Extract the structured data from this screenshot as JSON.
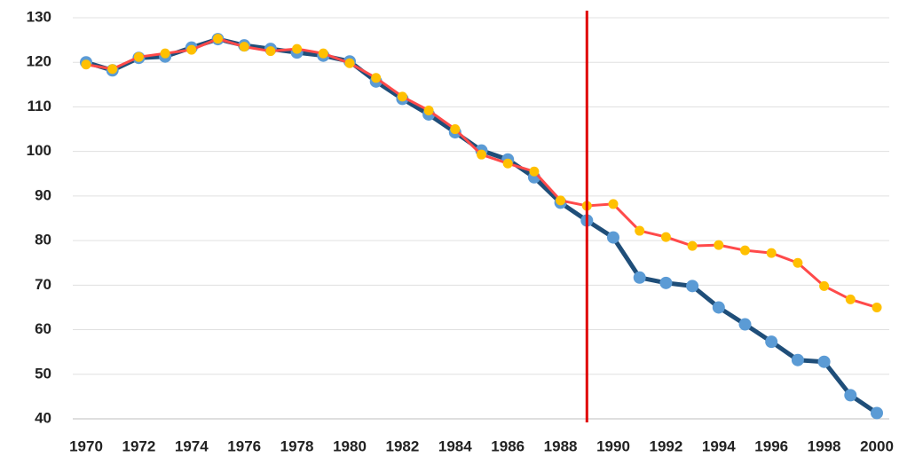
{
  "chart_data": {
    "type": "line",
    "x": [
      1970,
      1971,
      1972,
      1973,
      1974,
      1975,
      1976,
      1977,
      1978,
      1979,
      1980,
      1981,
      1982,
      1983,
      1984,
      1985,
      1986,
      1987,
      1988,
      1989,
      1990,
      1991,
      1992,
      1993,
      1994,
      1995,
      1996,
      1997,
      1998,
      1999,
      2000
    ],
    "series": [
      {
        "color": "#1f4e79",
        "marker_color": "#5b9bd5",
        "values": [
          120,
          118.2,
          121,
          121.3,
          123.3,
          125.2,
          123.8,
          123,
          122.2,
          121.5,
          120.2,
          115.7,
          111.8,
          108.3,
          104.3,
          100.2,
          98.2,
          94.2,
          88.5,
          84.5,
          80.7,
          71.7,
          70.5,
          69.8,
          65,
          61.2,
          57.3,
          53.2,
          52.8,
          45.3,
          41.3
        ]
      },
      {
        "color": "#ff4a4a",
        "marker_color": "#ffc000",
        "values": [
          119.5,
          118.5,
          121.2,
          122,
          122.8,
          125.3,
          123.5,
          122.5,
          123,
          122,
          119.8,
          116.5,
          112.3,
          109.2,
          105,
          99.3,
          97.3,
          95.5,
          89,
          87.8,
          88.2,
          82.2,
          80.8,
          78.8,
          79,
          77.8,
          77.2,
          75,
          69.8,
          66.8,
          65
        ]
      }
    ],
    "xlim": [
      1970,
      2000
    ],
    "xticks": [
      1970,
      1972,
      1974,
      1976,
      1978,
      1980,
      1982,
      1984,
      1986,
      1988,
      1990,
      1992,
      1994,
      1996,
      1998,
      2000
    ],
    "ylim": [
      40,
      130
    ],
    "yticks": [
      40,
      50,
      60,
      70,
      80,
      90,
      100,
      110,
      120,
      130
    ],
    "grid": true,
    "vline": {
      "x": 1989,
      "color": "#e00000"
    }
  }
}
